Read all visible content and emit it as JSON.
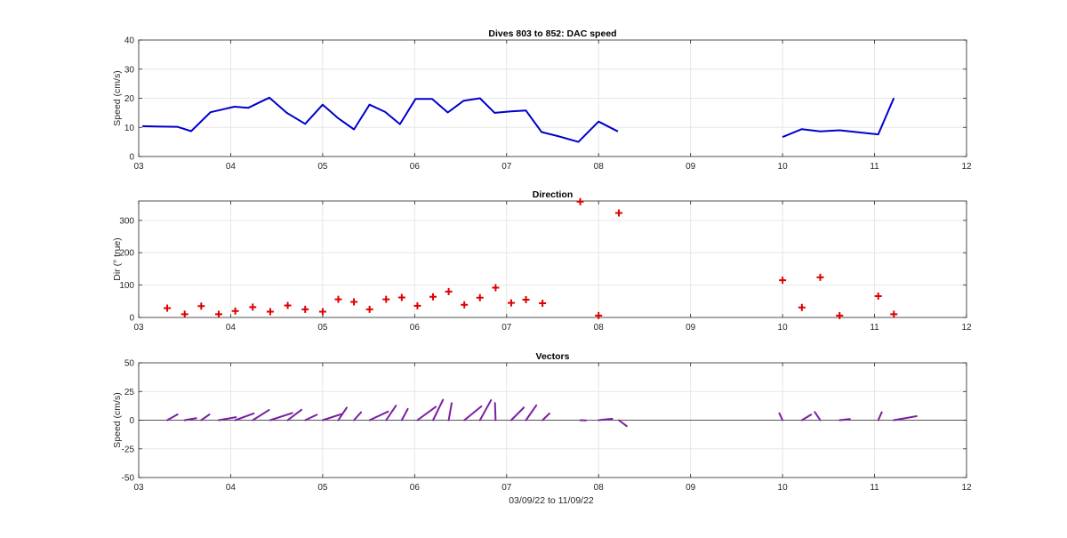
{
  "figure": {
    "background": "#ffffff",
    "xlabel": "03/09/22 to 11/09/22"
  },
  "chart_data": [
    {
      "type": "line",
      "title": "Dives 803 to 852: DAC speed",
      "xlabel": "",
      "ylabel": "Speed (cm/s)",
      "xlim": [
        3,
        12
      ],
      "ylim": [
        0,
        40
      ],
      "xticks": [
        3,
        4,
        5,
        6,
        7,
        8,
        9,
        10,
        11,
        12
      ],
      "xtick_labels": [
        "03",
        "04",
        "05",
        "06",
        "07",
        "08",
        "09",
        "10",
        "11",
        "12"
      ],
      "yticks": [
        0,
        10,
        20,
        30,
        40
      ],
      "ytick_labels": [
        "0",
        "10",
        "20",
        "30",
        "40"
      ],
      "grid": true,
      "series": [
        {
          "color": "#0000cc",
          "segments": [
            {
              "x": [
                3.04,
                3.19,
                3.42,
                3.57,
                3.78,
                4.04,
                4.19,
                4.42,
                4.61,
                4.81,
                5.0,
                5.17,
                5.34,
                5.51,
                5.68,
                5.84,
                6.01,
                6.19,
                6.36,
                6.53,
                6.71,
                6.87,
                7.05,
                7.21,
                7.38,
                7.57,
                7.78,
                8.0,
                8.21
              ],
              "y": [
                10.4,
                10.3,
                10.2,
                8.7,
                15.2,
                17.1,
                16.7,
                20.2,
                15.0,
                11.2,
                17.8,
                13.1,
                9.3,
                17.8,
                15.3,
                11.1,
                19.8,
                19.8,
                15.1,
                19.1,
                20.0,
                15.0,
                15.5,
                15.8,
                8.4,
                6.9,
                5.0,
                12.0,
                8.6
              ]
            },
            {
              "x": [
                10.0,
                10.21,
                10.41,
                10.62,
                11.04,
                11.21
              ],
              "y": [
                6.7,
                9.4,
                8.6,
                9.0,
                7.6,
                20.1
              ]
            }
          ]
        }
      ]
    },
    {
      "type": "scatter",
      "title": "Direction",
      "xlabel": "",
      "ylabel": "Dir (° true)",
      "xlim": [
        3,
        12
      ],
      "ylim": [
        0,
        360
      ],
      "xticks": [
        3,
        4,
        5,
        6,
        7,
        8,
        9,
        10,
        11,
        12
      ],
      "xtick_labels": [
        "03",
        "04",
        "05",
        "06",
        "07",
        "08",
        "09",
        "10",
        "11",
        "12"
      ],
      "yticks": [
        0,
        100,
        200,
        300
      ],
      "ytick_labels": [
        "0",
        "100",
        "200",
        "300"
      ],
      "grid": true,
      "marker": "+",
      "series": [
        {
          "color": "#dd0000",
          "x": [
            3.31,
            3.5,
            3.68,
            3.87,
            4.05,
            4.24,
            4.43,
            4.62,
            4.81,
            5.0,
            5.17,
            5.34,
            5.51,
            5.69,
            5.86,
            6.03,
            6.2,
            6.37,
            6.54,
            6.71,
            6.88,
            7.05,
            7.21,
            7.39,
            7.8,
            8.0,
            8.22,
            10.0,
            10.21,
            10.41,
            10.62,
            11.04,
            11.21
          ],
          "y": [
            29,
            10,
            35,
            10,
            20,
            32,
            18,
            37,
            25,
            18,
            56,
            48,
            25,
            56,
            62,
            36,
            64,
            80,
            39,
            61,
            92,
            45,
            55,
            44,
            358,
            6,
            323,
            115,
            31,
            124,
            6,
            66,
            10
          ]
        }
      ]
    },
    {
      "type": "vector",
      "title": "Vectors",
      "xlabel": "03/09/22 to 11/09/22",
      "ylabel": "Speed (cm/s)",
      "xlim": [
        3,
        12
      ],
      "ylim": [
        -50,
        50
      ],
      "xticks": [
        3,
        4,
        5,
        6,
        7,
        8,
        9,
        10,
        11,
        12
      ],
      "xtick_labels": [
        "03",
        "04",
        "05",
        "06",
        "07",
        "08",
        "09",
        "10",
        "11",
        "12"
      ],
      "yticks": [
        -50,
        -25,
        0,
        25,
        50
      ],
      "ytick_labels": [
        "-50",
        "-25",
        "0",
        "25",
        "50"
      ],
      "grid": true,
      "zero_line": true,
      "series": [
        {
          "color": "#7b1fa2",
          "x": [
            3.31,
            3.5,
            3.68,
            3.87,
            4.05,
            4.24,
            4.43,
            4.62,
            4.81,
            5.0,
            5.17,
            5.34,
            5.51,
            5.69,
            5.86,
            6.03,
            6.2,
            6.37,
            6.54,
            6.71,
            6.88,
            7.05,
            7.21,
            7.39,
            7.8,
            8.0,
            8.22,
            10.0,
            10.21,
            10.41,
            10.62,
            11.04,
            11.21
          ],
          "speed": [
            10.3,
            10.2,
            8.7,
            15.2,
            17.1,
            16.7,
            20.2,
            15.0,
            11.2,
            17.8,
            13.1,
            9.3,
            17.8,
            15.3,
            11.1,
            19.8,
            19.8,
            15.1,
            19.1,
            20.0,
            15.0,
            15.5,
            15.8,
            8.4,
            5.0,
            12.0,
            8.6,
            6.7,
            9.4,
            8.6,
            9.0,
            7.6,
            20.1
          ],
          "direction": [
            29,
            10,
            35,
            10,
            20,
            32,
            18,
            37,
            25,
            18,
            56,
            48,
            25,
            56,
            62,
            36,
            64,
            80,
            39,
            61,
            92,
            45,
            55,
            44,
            358,
            6,
            323,
            115,
            31,
            124,
            6,
            66,
            10
          ]
        }
      ]
    }
  ]
}
